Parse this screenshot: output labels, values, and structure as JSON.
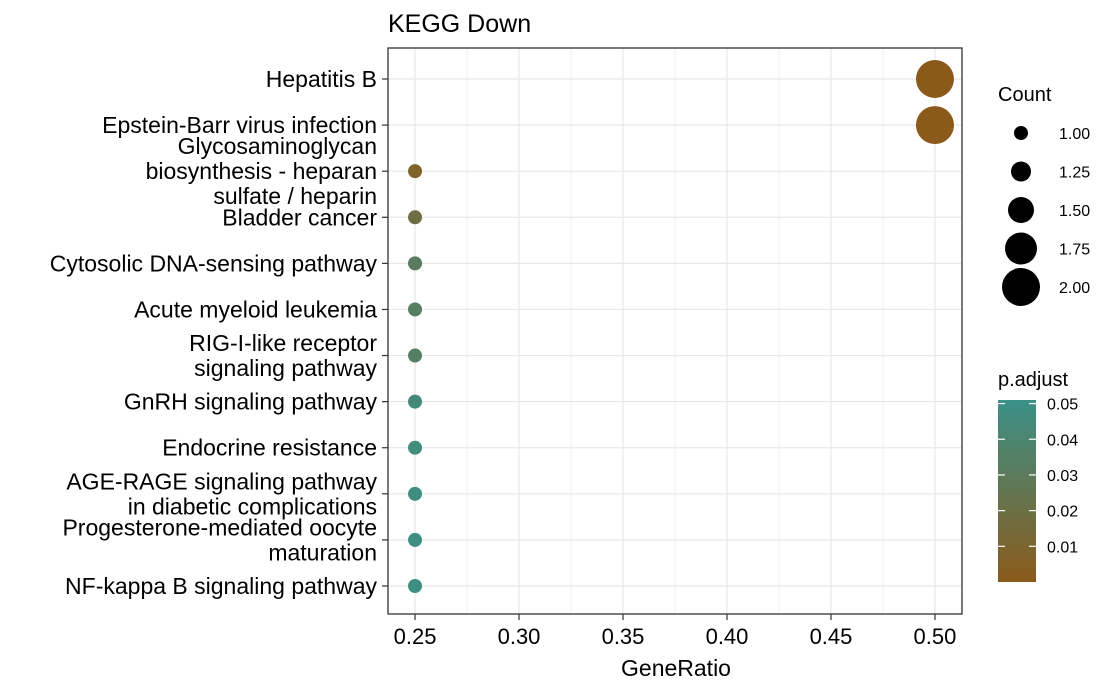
{
  "chart_data": {
    "type": "scatter",
    "title": "KEGG Down",
    "xlabel": "GeneRatio",
    "ylabel": "",
    "xlim": [
      0.237,
      0.513
    ],
    "x_ticks": [
      "0.25",
      "0.30",
      "0.35",
      "0.40",
      "0.45",
      "0.50"
    ],
    "x_tick_values": [
      0.25,
      0.3,
      0.35,
      0.4,
      0.45,
      0.5
    ],
    "grid": true,
    "points": [
      {
        "label": [
          "Hepatitis B"
        ],
        "x": 0.5,
        "count": 2,
        "p_adjust": 0.0003
      },
      {
        "label": [
          "Epstein-Barr virus infection"
        ],
        "x": 0.5,
        "count": 2,
        "p_adjust": 0.0003
      },
      {
        "label": [
          "Glycosaminoglycan",
          "biosynthesis - heparan",
          "sulfate / heparin"
        ],
        "x": 0.25,
        "count": 1,
        "p_adjust": 0.008
      },
      {
        "label": [
          "Bladder cancer"
        ],
        "x": 0.25,
        "count": 1,
        "p_adjust": 0.019
      },
      {
        "label": [
          "Cytosolic DNA-sensing pathway"
        ],
        "x": 0.25,
        "count": 1,
        "p_adjust": 0.031
      },
      {
        "label": [
          "Acute myeloid leukemia"
        ],
        "x": 0.25,
        "count": 1,
        "p_adjust": 0.033
      },
      {
        "label": [
          "RIG-I-like receptor",
          "signaling pathway"
        ],
        "x": 0.25,
        "count": 1,
        "p_adjust": 0.034
      },
      {
        "label": [
          "GnRH signaling pathway"
        ],
        "x": 0.25,
        "count": 1,
        "p_adjust": 0.044
      },
      {
        "label": [
          "Endocrine resistance"
        ],
        "x": 0.25,
        "count": 1,
        "p_adjust": 0.046
      },
      {
        "label": [
          "AGE-RAGE signaling pathway",
          "in diabetic complications"
        ],
        "x": 0.25,
        "count": 1,
        "p_adjust": 0.047
      },
      {
        "label": [
          "Progesterone-mediated oocyte",
          "maturation"
        ],
        "x": 0.25,
        "count": 1,
        "p_adjust": 0.048
      },
      {
        "label": [
          "NF-kappa B signaling pathway"
        ],
        "x": 0.25,
        "count": 1,
        "p_adjust": 0.049
      }
    ],
    "size_legend": {
      "title": "Count",
      "values": [
        1.0,
        1.25,
        1.5,
        1.75,
        2.0
      ],
      "labels": [
        "1.00",
        "1.25",
        "1.50",
        "1.75",
        "2.00"
      ]
    },
    "color_legend": {
      "title": "p.adjust",
      "range": [
        0.0,
        0.051
      ],
      "low_color": "#8B5A1A",
      "high_color": "#3A9188",
      "tick_values": [
        0.01,
        0.02,
        0.03,
        0.04,
        0.05
      ],
      "tick_labels": [
        "0.01",
        "0.02",
        "0.03",
        "0.04",
        "0.05"
      ]
    }
  }
}
